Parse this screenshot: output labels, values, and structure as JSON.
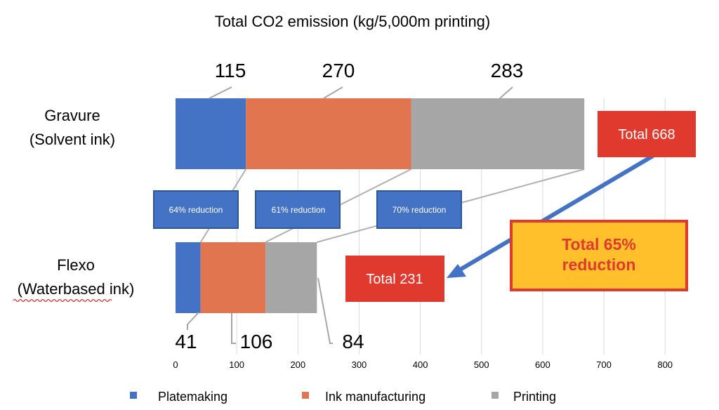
{
  "chart_data": {
    "type": "bar",
    "orientation": "horizontal",
    "stacked": true,
    "title": "Total CO2 emission (kg/5,000m printing)",
    "categories": [
      {
        "line1": "Gravure",
        "line2": "(Solvent ink)"
      },
      {
        "line1": "Flexo",
        "line2": "(Waterbased ink)"
      }
    ],
    "series": [
      {
        "name": "Platemaking",
        "color": "#4472c4",
        "values": [
          115,
          41
        ]
      },
      {
        "name": "Ink manufacturing",
        "color": "#e07550",
        "values": [
          270,
          106
        ]
      },
      {
        "name": "Printing",
        "color": "#a6a6a6",
        "values": [
          283,
          84
        ]
      }
    ],
    "xlim": [
      0,
      800
    ],
    "xticks": [
      0,
      100,
      200,
      300,
      400,
      500,
      600,
      700,
      800
    ],
    "grid": true,
    "legend_position": "bottom",
    "annotations": {
      "total_gravure": "Total 668",
      "total_flexo": "Total 231",
      "total_reduction": "Total 65% reduction",
      "reductions": [
        "64% reduction",
        "61% reduction",
        "70% reduction"
      ]
    }
  }
}
